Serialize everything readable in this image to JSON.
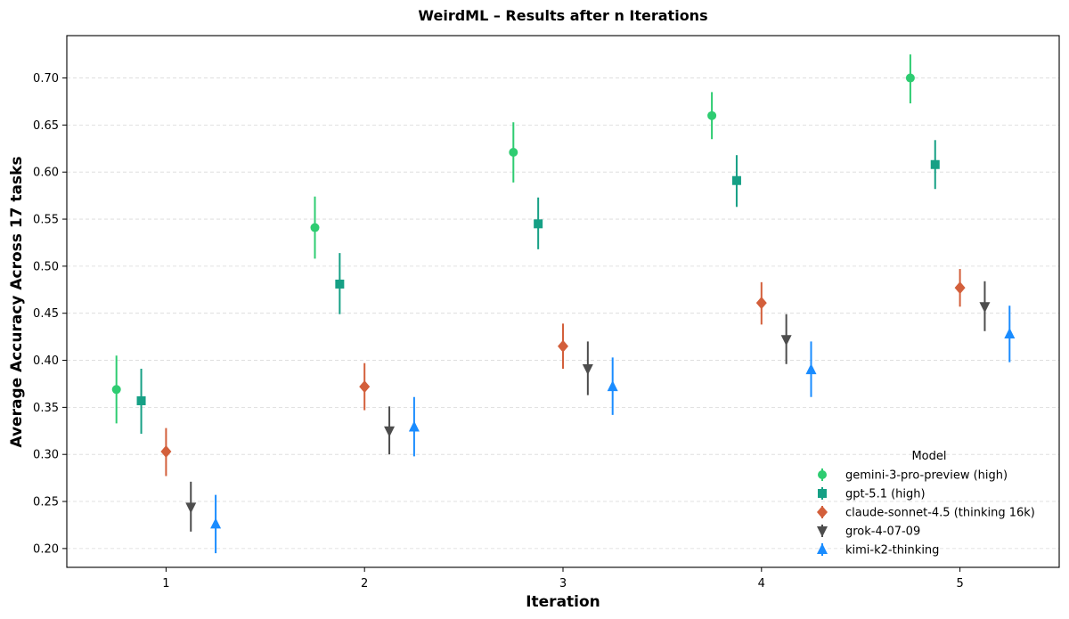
{
  "chart_data": {
    "type": "scatter",
    "title": "WeirdML – Results after n Iterations",
    "xlabel": "Iteration",
    "ylabel": "Average Accuracy Across 17 tasks",
    "x": [
      1,
      2,
      3,
      4,
      5
    ],
    "x_ticks": [
      "1",
      "2",
      "3",
      "4",
      "5"
    ],
    "ylim": [
      0.18,
      0.745
    ],
    "y_ticks": [
      "0.20",
      "0.25",
      "0.30",
      "0.35",
      "0.40",
      "0.45",
      "0.50",
      "0.55",
      "0.60",
      "0.65",
      "0.70"
    ],
    "grid": "horizontal dashed",
    "legend": {
      "title": "Model",
      "placement": "bottom-right"
    },
    "error_bars": true,
    "series": [
      {
        "name": "gemini-3-pro-preview (high)",
        "marker": "circle",
        "color": "#2ecc71",
        "values": [
          0.369,
          0.541,
          0.621,
          0.66,
          0.7
        ],
        "err_low": [
          0.333,
          0.508,
          0.589,
          0.635,
          0.673
        ],
        "err_high": [
          0.405,
          0.574,
          0.653,
          0.685,
          0.725
        ]
      },
      {
        "name": "gpt-5.1 (high)",
        "marker": "square",
        "color": "#16a085",
        "values": [
          0.357,
          0.481,
          0.545,
          0.591,
          0.608
        ],
        "err_low": [
          0.322,
          0.449,
          0.518,
          0.563,
          0.582
        ],
        "err_high": [
          0.391,
          0.514,
          0.573,
          0.618,
          0.634
        ]
      },
      {
        "name": "claude-sonnet-4.5 (thinking 16k)",
        "marker": "diamond",
        "color": "#d35f3b",
        "values": [
          0.303,
          0.372,
          0.415,
          0.461,
          0.477
        ],
        "err_low": [
          0.277,
          0.347,
          0.391,
          0.438,
          0.457
        ],
        "err_high": [
          0.328,
          0.397,
          0.439,
          0.483,
          0.497
        ]
      },
      {
        "name": "grok-4-07-09",
        "marker": "triangle-down",
        "color": "#4d4d4d",
        "values": [
          0.244,
          0.325,
          0.391,
          0.422,
          0.457
        ],
        "err_low": [
          0.218,
          0.3,
          0.363,
          0.396,
          0.431
        ],
        "err_high": [
          0.271,
          0.351,
          0.42,
          0.449,
          0.484
        ]
      },
      {
        "name": "kimi-k2-thinking",
        "marker": "triangle-up",
        "color": "#1a8cff",
        "values": [
          0.226,
          0.329,
          0.372,
          0.39,
          0.428
        ],
        "err_low": [
          0.195,
          0.298,
          0.342,
          0.361,
          0.398
        ],
        "err_high": [
          0.257,
          0.361,
          0.403,
          0.42,
          0.458
        ]
      }
    ]
  }
}
